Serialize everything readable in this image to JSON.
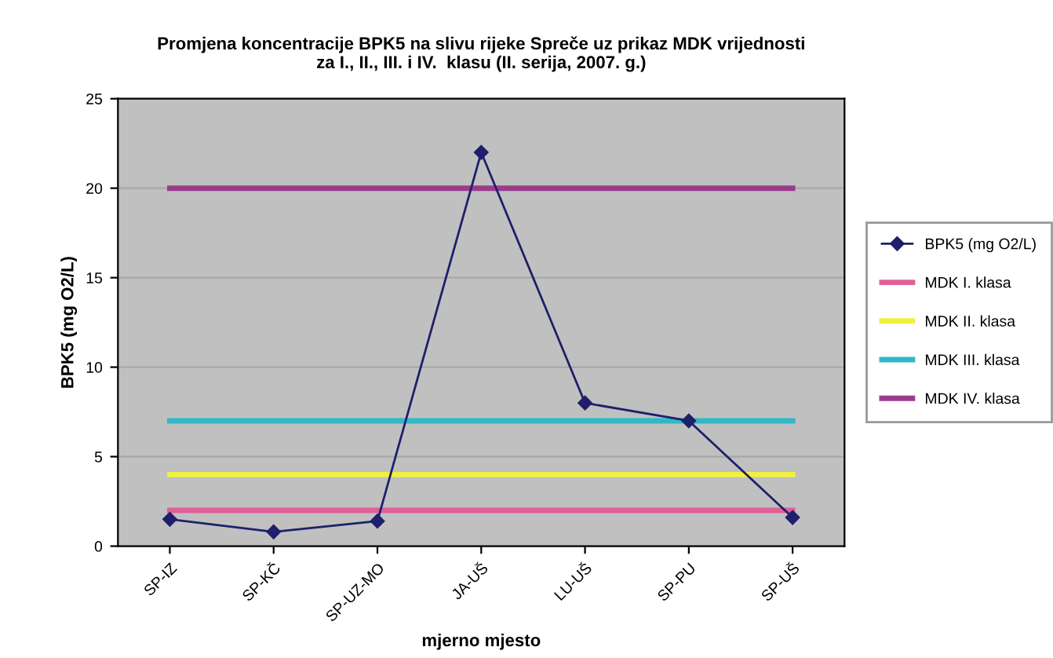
{
  "chart_data": {
    "type": "line",
    "title": "Promjena koncentracije BPK5 na slivu rijeke Spreče uz prikaz MDK vrijednosti\nza I., II., III. i IV.  klasu (II. serija, 2007. g.)",
    "xlabel": "mjerno mjesto",
    "ylabel": "BPK5 (mg O2/L)",
    "categories": [
      "SP-IZ",
      "SP-KČ",
      "SP-UZ-MO",
      "JA-UŠ",
      "LU-UŠ",
      "SP-PU",
      "SP-UŠ"
    ],
    "series": [
      {
        "name": "BPK5 (mg O2/L)",
        "color": "#1f1f6b",
        "marker": "diamond",
        "values": [
          1.5,
          0.8,
          1.4,
          22,
          8,
          7,
          1.6
        ]
      },
      {
        "name": "MDK I. klasa",
        "color": "#e0609a",
        "marker": "none",
        "values": [
          2,
          2,
          2,
          2,
          2,
          2,
          2
        ]
      },
      {
        "name": "MDK II. klasa",
        "color": "#f0f040",
        "marker": "none",
        "values": [
          4,
          4,
          4,
          4,
          4,
          4,
          4
        ]
      },
      {
        "name": "MDK III. klasa",
        "color": "#30b8c8",
        "marker": "none",
        "values": [
          7,
          7,
          7,
          7,
          7,
          7,
          7
        ]
      },
      {
        "name": "MDK IV. klasa",
        "color": "#9a3c8c",
        "marker": "none",
        "values": [
          20,
          20,
          20,
          20,
          20,
          20,
          20
        ]
      }
    ],
    "ylim": [
      0,
      25
    ],
    "yticks": [
      0,
      5,
      10,
      15,
      20,
      25
    ],
    "grid": "y",
    "legend": "right",
    "line_style": "solid"
  }
}
